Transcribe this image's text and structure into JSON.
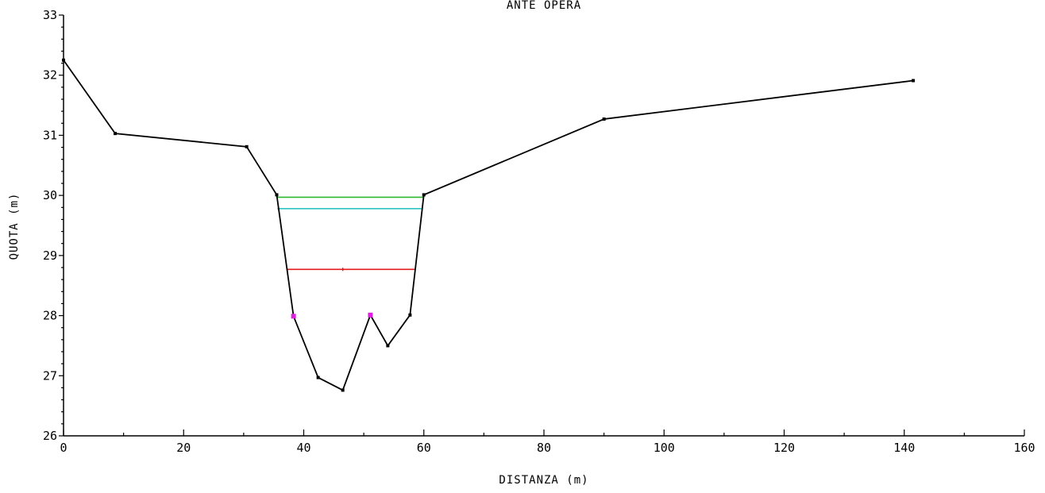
{
  "chart_data": {
    "type": "line",
    "title": "ANTE OPERA",
    "xlabel": "DISTANZA (m)",
    "ylabel": "QUOTA (m)",
    "xlim": [
      0,
      160
    ],
    "ylim": [
      26,
      33
    ],
    "x_ticks": [
      0,
      20,
      40,
      60,
      80,
      100,
      120,
      140,
      160
    ],
    "y_ticks": [
      26,
      27,
      28,
      29,
      30,
      31,
      32,
      33
    ],
    "grid": false,
    "series": [
      {
        "color": "#000000",
        "x": [
          0,
          8.6,
          30.5,
          35.5,
          38.3,
          42.4,
          46.5,
          51.1,
          54.0,
          57.7,
          60.0,
          90.0,
          141.5
        ],
        "y": [
          32.25,
          31.03,
          30.81,
          30.01,
          27.99,
          26.97,
          26.76,
          28.01,
          27.5,
          28.01,
          30.01,
          31.27,
          31.91
        ]
      }
    ],
    "markers": {
      "color": "#e020e0",
      "x": [
        38.3,
        51.1
      ],
      "y": [
        27.99,
        28.01
      ]
    },
    "levels": [
      {
        "color": "#2db82d",
        "y": 29.97,
        "x_start": 35.5,
        "x_end": 60.0
      },
      {
        "color": "#2ec4c4",
        "y": 29.78,
        "x_start": 35.6,
        "x_end": 59.8
      },
      {
        "color": "#e21b1b",
        "y": 28.77,
        "x_start": 37.1,
        "x_end": 58.6,
        "mid_x": 46.5
      }
    ]
  }
}
